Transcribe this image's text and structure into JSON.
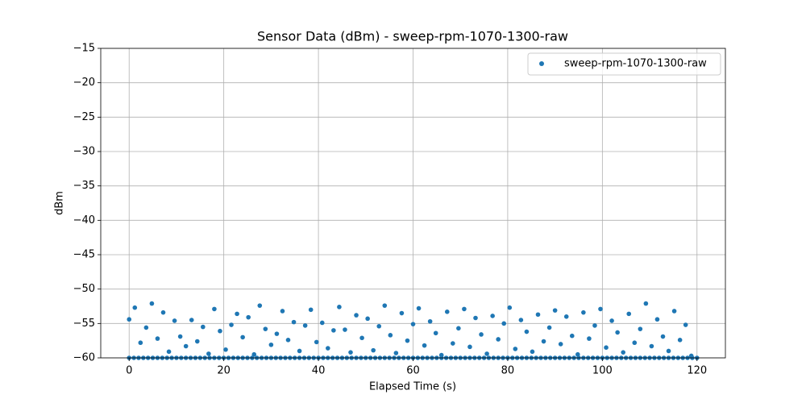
{
  "chart_data": {
    "type": "scatter",
    "title": "Sensor Data (dBm) - sweep-rpm-1070-1300-raw",
    "x_label": "Elapsed Time (s)",
    "y_label": "dBm",
    "xlim": [
      -6,
      126
    ],
    "ylim": [
      -60,
      -15
    ],
    "xticks": [
      0,
      20,
      40,
      60,
      80,
      100,
      120
    ],
    "yticks": [
      {
        "value": -15,
        "label": "−15"
      },
      {
        "value": -20,
        "label": "−20"
      },
      {
        "value": -25,
        "label": "−25"
      },
      {
        "value": -30,
        "label": "−30"
      },
      {
        "value": -35,
        "label": "−35"
      },
      {
        "value": -40,
        "label": "−40"
      },
      {
        "value": -45,
        "label": "−45"
      },
      {
        "value": -50,
        "label": "−50"
      },
      {
        "value": -55,
        "label": "−55"
      },
      {
        "value": -60,
        "label": "−60"
      }
    ],
    "grid": true,
    "legend": "upper right",
    "series": [
      {
        "name": "sweep-rpm-1070-1300-raw",
        "color": "#1f77b4",
        "x": [
          0,
          1.2,
          2.4,
          3.6,
          4.8,
          6,
          7.2,
          8.4,
          9.6,
          10.8,
          12,
          13.2,
          14.4,
          15.6,
          16.8,
          18,
          19.2,
          20.4,
          21.6,
          22.8,
          24,
          25.2,
          26.4,
          27.6,
          28.8,
          30,
          31.2,
          32.4,
          33.6,
          34.8,
          36,
          37.2,
          38.4,
          39.6,
          40.8,
          42,
          43.2,
          44.4,
          45.6,
          46.8,
          48,
          49.2,
          50.4,
          51.6,
          52.8,
          54,
          55.2,
          56.4,
          57.6,
          58.8,
          60,
          61.2,
          62.4,
          63.6,
          64.8,
          66,
          67.2,
          68.4,
          69.6,
          70.8,
          72,
          73.2,
          74.4,
          75.6,
          76.8,
          78,
          79.2,
          80.4,
          81.6,
          82.8,
          84,
          85.2,
          86.4,
          87.6,
          88.8,
          90,
          91.2,
          92.4,
          93.6,
          94.8,
          96,
          97.2,
          98.4,
          99.6,
          100.8,
          102,
          103.2,
          104.4,
          105.6,
          106.8,
          108,
          109.2,
          110.4,
          111.6,
          112.8,
          114,
          115.2,
          116.4,
          117.6,
          118.8,
          0,
          1,
          2,
          3,
          4,
          5,
          6,
          7,
          8,
          9,
          10,
          11,
          12,
          13,
          14,
          15,
          16,
          17,
          18,
          19,
          20,
          21,
          22,
          23,
          24,
          25,
          26,
          27,
          28,
          29,
          30,
          31,
          32,
          33,
          34,
          35,
          36,
          37,
          38,
          39,
          40,
          41,
          42,
          43,
          44,
          45,
          46,
          47,
          48,
          49,
          50,
          51,
          52,
          53,
          54,
          55,
          56,
          57,
          58,
          59,
          60,
          61,
          62,
          63,
          64,
          65,
          66,
          67,
          68,
          69,
          70,
          71,
          72,
          73,
          74,
          75,
          76,
          77,
          78,
          79,
          80,
          81,
          82,
          83,
          84,
          85,
          86,
          87,
          88,
          89,
          90,
          91,
          92,
          93,
          94,
          95,
          96,
          97,
          98,
          99,
          100,
          101,
          102,
          103,
          104,
          105,
          106,
          107,
          108,
          109,
          110,
          111,
          112,
          113,
          114,
          115,
          116,
          117,
          118,
          119,
          120
        ],
        "values": [
          -54.4,
          -52.7,
          -57.8,
          -55.6,
          -52.1,
          -57.2,
          -53.4,
          -59.1,
          -54.6,
          -56.9,
          -58.3,
          -54.5,
          -57.6,
          -55.5,
          -59.4,
          -52.9,
          -56.1,
          -58.8,
          -55.2,
          -53.6,
          -57.0,
          -54.1,
          -59.5,
          -52.4,
          -55.8,
          -58.1,
          -56.5,
          -53.2,
          -57.4,
          -54.8,
          -59.0,
          -55.3,
          -53.0,
          -57.7,
          -54.9,
          -58.6,
          -56.0,
          -52.6,
          -55.9,
          -59.2,
          -53.8,
          -57.1,
          -54.3,
          -58.9,
          -55.4,
          -52.4,
          -56.7,
          -59.3,
          -53.5,
          -57.5,
          -55.1,
          -52.8,
          -58.2,
          -54.7,
          -56.4,
          -59.6,
          -53.3,
          -57.9,
          -55.7,
          -52.9,
          -58.4,
          -54.2,
          -56.6,
          -59.4,
          -53.9,
          -57.3,
          -55.0,
          -52.7,
          -58.7,
          -54.5,
          -56.2,
          -59.1,
          -53.7,
          -57.6,
          -55.6,
          -53.1,
          -58.0,
          -54.0,
          -56.8,
          -59.5,
          -53.4,
          -57.2,
          -55.3,
          -52.9,
          -58.5,
          -54.6,
          -56.3,
          -59.2,
          -53.6,
          -57.8,
          -55.8,
          -52.1,
          -58.3,
          -54.4,
          -56.9,
          -59.0,
          -53.2,
          -57.4,
          -55.2,
          -59.7,
          -60,
          -60,
          -60,
          -60,
          -60,
          -60,
          -60,
          -60,
          -60,
          -60,
          -60,
          -60,
          -60,
          -60,
          -60,
          -60,
          -60,
          -60,
          -60,
          -60,
          -60,
          -60,
          -60,
          -60,
          -60,
          -60,
          -60,
          -60,
          -60,
          -60,
          -60,
          -60,
          -60,
          -60,
          -60,
          -60,
          -60,
          -60,
          -60,
          -60,
          -60,
          -60,
          -60,
          -60,
          -60,
          -60,
          -60,
          -60,
          -60,
          -60,
          -60,
          -60,
          -60,
          -60,
          -60,
          -60,
          -60,
          -60,
          -60,
          -60,
          -60,
          -60,
          -60,
          -60,
          -60,
          -60,
          -60,
          -60,
          -60,
          -60,
          -60,
          -60,
          -60,
          -60,
          -60,
          -60,
          -60,
          -60,
          -60,
          -60,
          -60,
          -60,
          -60,
          -60,
          -60,
          -60,
          -60,
          -60,
          -60,
          -60,
          -60,
          -60,
          -60,
          -60,
          -60,
          -60,
          -60,
          -60,
          -60,
          -60,
          -60,
          -60,
          -60,
          -60,
          -60,
          -60,
          -60,
          -60,
          -60,
          -60,
          -60,
          -60,
          -60,
          -60,
          -60,
          -60,
          -60,
          -60,
          -60,
          -60,
          -60
        ]
      }
    ]
  }
}
